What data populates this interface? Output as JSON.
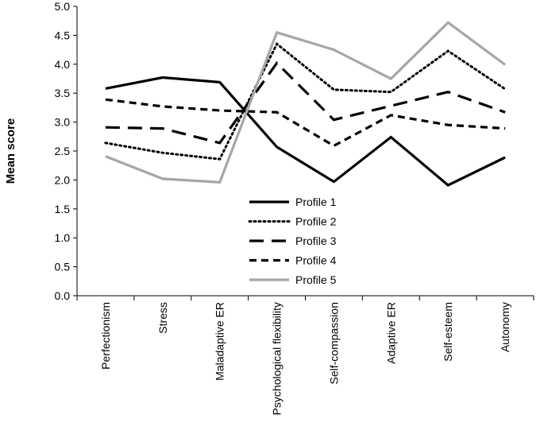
{
  "chart_data": {
    "type": "line",
    "ylabel": "Mean score",
    "xlabel": "",
    "ylim": [
      0,
      5
    ],
    "yticks": [
      "0.0",
      "0.5",
      "1.0",
      "1.5",
      "2.0",
      "2.5",
      "3.0",
      "3.5",
      "4.0",
      "4.5",
      "5.0"
    ],
    "ytick_values": [
      0,
      0.5,
      1.0,
      1.5,
      2.0,
      2.5,
      3.0,
      3.5,
      4.0,
      4.5,
      5.0
    ],
    "categories": [
      "Perfectionism",
      "Stress",
      "Maladaptive ER",
      "Psychological flexibility",
      "Self-compassion",
      "Adaptive ER",
      "Self-esteem",
      "Autonomy"
    ],
    "grid": false,
    "legend_position": "center",
    "series": [
      {
        "name": "Profile 1",
        "values": [
          3.58,
          3.77,
          3.69,
          2.57,
          1.97,
          2.74,
          1.91,
          2.39
        ],
        "color": "#000000",
        "style": "solid"
      },
      {
        "name": "Profile 2",
        "values": [
          2.64,
          2.47,
          2.36,
          4.35,
          3.56,
          3.52,
          4.23,
          3.57
        ],
        "color": "#000000",
        "style": "dotted"
      },
      {
        "name": "Profile 3",
        "values": [
          2.91,
          2.89,
          2.64,
          4.02,
          3.04,
          3.28,
          3.52,
          3.17
        ],
        "color": "#000000",
        "style": "longdash"
      },
      {
        "name": "Profile 4",
        "values": [
          3.39,
          3.27,
          3.2,
          3.17,
          2.59,
          3.12,
          2.95,
          2.89
        ],
        "color": "#000000",
        "style": "dash"
      },
      {
        "name": "Profile 5",
        "values": [
          2.41,
          2.02,
          1.96,
          4.55,
          4.25,
          3.75,
          4.72,
          3.99
        ],
        "color": "#a6a6a6",
        "style": "solid"
      }
    ]
  }
}
